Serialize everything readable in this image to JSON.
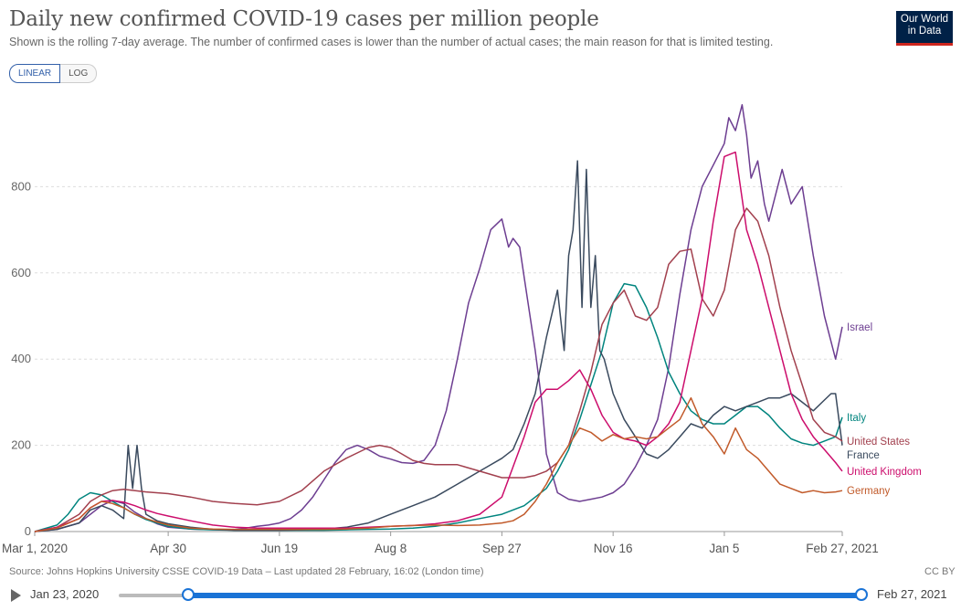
{
  "header": {
    "title": "Daily new confirmed COVID-19 cases per million people",
    "subtitle": "Shown is the rolling 7-day average. The number of confirmed cases is lower than the number of actual cases; the main reason for that is limited testing.",
    "logo_line1": "Our World",
    "logo_line2": "in Data"
  },
  "scale_toggle": {
    "linear_label": "LINEAR",
    "log_label": "LOG",
    "selected": "LINEAR"
  },
  "footer": {
    "source": "Source: Johns Hopkins University CSSE COVID-19 Data – Last updated 28 February, 16:02 (London time)",
    "license": "CC BY"
  },
  "timeline": {
    "start_label": "Jan 23, 2020",
    "end_label": "Feb 27, 2021",
    "selected_start": "Mar 1, 2020",
    "selected_end": "Feb 27, 2021"
  },
  "chart_data": {
    "type": "line",
    "title": "Daily new confirmed COVID-19 cases per million people",
    "x_ticks": [
      "Mar 1, 2020",
      "Apr 30",
      "Jun 19",
      "Aug 8",
      "Sep 27",
      "Nov 16",
      "Jan 5",
      "Feb 27, 2021"
    ],
    "x_tick_days": [
      0,
      60,
      110,
      160,
      210,
      260,
      310,
      363
    ],
    "xlim_days": [
      0,
      363
    ],
    "y_ticks": [
      0,
      200,
      400,
      600,
      800
    ],
    "ylim": [
      0,
      1000
    ],
    "grid": true,
    "legend": "inline labels at line ends",
    "series": [
      {
        "name": "Israel",
        "color": "#6d3e91",
        "x": [
          0,
          10,
          20,
          30,
          35,
          40,
          45,
          50,
          55,
          60,
          65,
          70,
          75,
          80,
          85,
          90,
          95,
          100,
          105,
          110,
          115,
          120,
          125,
          130,
          135,
          140,
          145,
          150,
          155,
          160,
          165,
          170,
          175,
          180,
          185,
          190,
          195,
          200,
          205,
          210,
          213,
          215,
          218,
          220,
          225,
          228,
          230,
          235,
          240,
          245,
          250,
          255,
          260,
          265,
          270,
          275,
          280,
          285,
          290,
          295,
          300,
          305,
          310,
          312,
          315,
          318,
          320,
          322,
          325,
          328,
          330,
          333,
          336,
          340,
          345,
          350,
          355,
          360,
          363
        ],
        "y": [
          0,
          5,
          20,
          60,
          72,
          65,
          45,
          30,
          18,
          10,
          8,
          6,
          5,
          5,
          4,
          5,
          8,
          12,
          15,
          20,
          30,
          50,
          80,
          120,
          160,
          190,
          200,
          190,
          175,
          168,
          160,
          158,
          165,
          200,
          280,
          400,
          530,
          610,
          700,
          725,
          660,
          680,
          660,
          590,
          420,
          300,
          180,
          90,
          75,
          70,
          75,
          80,
          90,
          110,
          150,
          200,
          260,
          380,
          550,
          700,
          800,
          850,
          900,
          960,
          930,
          990,
          920,
          820,
          860,
          760,
          720,
          780,
          840,
          760,
          800,
          640,
          500,
          400,
          475
        ]
      },
      {
        "name": "Italy",
        "color": "#00847e",
        "x": [
          0,
          10,
          15,
          20,
          25,
          30,
          35,
          40,
          45,
          50,
          55,
          60,
          70,
          80,
          90,
          100,
          110,
          120,
          130,
          140,
          150,
          160,
          170,
          180,
          190,
          200,
          210,
          220,
          230,
          235,
          240,
          245,
          250,
          255,
          260,
          265,
          270,
          275,
          280,
          285,
          290,
          295,
          300,
          305,
          310,
          315,
          320,
          325,
          330,
          335,
          340,
          345,
          350,
          355,
          360,
          363
        ],
        "y": [
          0,
          15,
          40,
          75,
          90,
          85,
          70,
          55,
          40,
          28,
          20,
          12,
          6,
          4,
          3,
          3,
          3,
          3,
          3,
          4,
          5,
          6,
          8,
          12,
          20,
          30,
          40,
          60,
          100,
          140,
          190,
          260,
          340,
          420,
          530,
          575,
          570,
          520,
          450,
          370,
          320,
          280,
          260,
          250,
          250,
          270,
          290,
          290,
          270,
          240,
          215,
          205,
          200,
          210,
          220,
          265
        ]
      },
      {
        "name": "France",
        "color": "#3a4a5e",
        "x": [
          0,
          10,
          20,
          25,
          30,
          35,
          40,
          42,
          44,
          46,
          48,
          50,
          55,
          60,
          70,
          80,
          90,
          100,
          110,
          120,
          130,
          140,
          150,
          160,
          170,
          180,
          190,
          200,
          210,
          215,
          220,
          225,
          230,
          235,
          238,
          240,
          242,
          244,
          246,
          248,
          250,
          252,
          254,
          256,
          258,
          260,
          265,
          270,
          275,
          280,
          285,
          290,
          295,
          300,
          305,
          310,
          315,
          320,
          325,
          330,
          335,
          340,
          345,
          350,
          355,
          358,
          360,
          363
        ],
        "y": [
          0,
          5,
          20,
          50,
          60,
          50,
          30,
          200,
          100,
          200,
          100,
          40,
          25,
          18,
          10,
          5,
          3,
          3,
          3,
          4,
          6,
          10,
          20,
          40,
          60,
          80,
          110,
          140,
          170,
          190,
          250,
          320,
          450,
          560,
          420,
          640,
          700,
          860,
          520,
          840,
          520,
          640,
          420,
          400,
          360,
          320,
          260,
          220,
          180,
          170,
          190,
          220,
          250,
          240,
          270,
          290,
          280,
          290,
          300,
          310,
          310,
          320,
          300,
          280,
          305,
          320,
          320,
          200
        ]
      },
      {
        "name": "United States",
        "color": "#a2404e",
        "x": [
          0,
          10,
          20,
          25,
          30,
          35,
          40,
          50,
          60,
          70,
          80,
          90,
          100,
          110,
          120,
          130,
          140,
          150,
          155,
          160,
          165,
          170,
          175,
          180,
          190,
          200,
          210,
          220,
          225,
          230,
          235,
          240,
          245,
          250,
          255,
          260,
          265,
          270,
          275,
          280,
          285,
          290,
          295,
          300,
          305,
          310,
          315,
          320,
          325,
          330,
          335,
          340,
          345,
          350,
          355,
          360,
          363
        ],
        "y": [
          0,
          10,
          40,
          70,
          85,
          95,
          98,
          92,
          88,
          80,
          70,
          65,
          62,
          70,
          95,
          140,
          170,
          195,
          200,
          195,
          180,
          165,
          158,
          155,
          155,
          140,
          125,
          125,
          130,
          140,
          160,
          200,
          280,
          370,
          480,
          530,
          560,
          500,
          490,
          520,
          620,
          650,
          655,
          540,
          500,
          560,
          700,
          750,
          720,
          640,
          520,
          420,
          340,
          260,
          230,
          220,
          210
        ]
      },
      {
        "name": "United Kingdom",
        "color": "#cc0d6c",
        "x": [
          0,
          10,
          20,
          25,
          30,
          35,
          40,
          45,
          50,
          55,
          60,
          70,
          80,
          90,
          100,
          110,
          120,
          130,
          140,
          150,
          160,
          170,
          180,
          190,
          200,
          210,
          215,
          220,
          225,
          230,
          235,
          240,
          245,
          250,
          255,
          260,
          265,
          270,
          275,
          280,
          285,
          290,
          295,
          300,
          305,
          310,
          315,
          320,
          325,
          330,
          335,
          340,
          345,
          350,
          355,
          360,
          363
        ],
        "y": [
          0,
          10,
          30,
          55,
          70,
          72,
          68,
          60,
          50,
          42,
          36,
          25,
          15,
          10,
          8,
          8,
          8,
          8,
          8,
          10,
          12,
          14,
          18,
          25,
          40,
          80,
          150,
          220,
          300,
          330,
          330,
          350,
          375,
          330,
          270,
          230,
          215,
          210,
          200,
          220,
          250,
          300,
          420,
          540,
          720,
          870,
          880,
          700,
          620,
          520,
          420,
          320,
          260,
          220,
          190,
          160,
          140
        ]
      },
      {
        "name": "Germany",
        "color": "#c15a2a",
        "x": [
          0,
          10,
          20,
          25,
          30,
          35,
          40,
          45,
          50,
          55,
          60,
          70,
          80,
          90,
          100,
          110,
          120,
          130,
          140,
          150,
          160,
          170,
          180,
          190,
          200,
          210,
          215,
          220,
          225,
          230,
          235,
          240,
          245,
          250,
          255,
          260,
          265,
          270,
          275,
          280,
          285,
          290,
          295,
          300,
          305,
          310,
          315,
          320,
          325,
          330,
          335,
          340,
          345,
          350,
          355,
          360,
          363
        ],
        "y": [
          0,
          8,
          30,
          55,
          70,
          65,
          55,
          40,
          30,
          22,
          15,
          8,
          6,
          5,
          5,
          5,
          5,
          5,
          6,
          8,
          12,
          14,
          15,
          14,
          15,
          20,
          25,
          40,
          70,
          110,
          160,
          200,
          240,
          230,
          210,
          225,
          215,
          220,
          215,
          220,
          240,
          260,
          310,
          250,
          220,
          180,
          240,
          190,
          170,
          140,
          110,
          100,
          90,
          95,
          90,
          92,
          95
        ]
      }
    ]
  }
}
